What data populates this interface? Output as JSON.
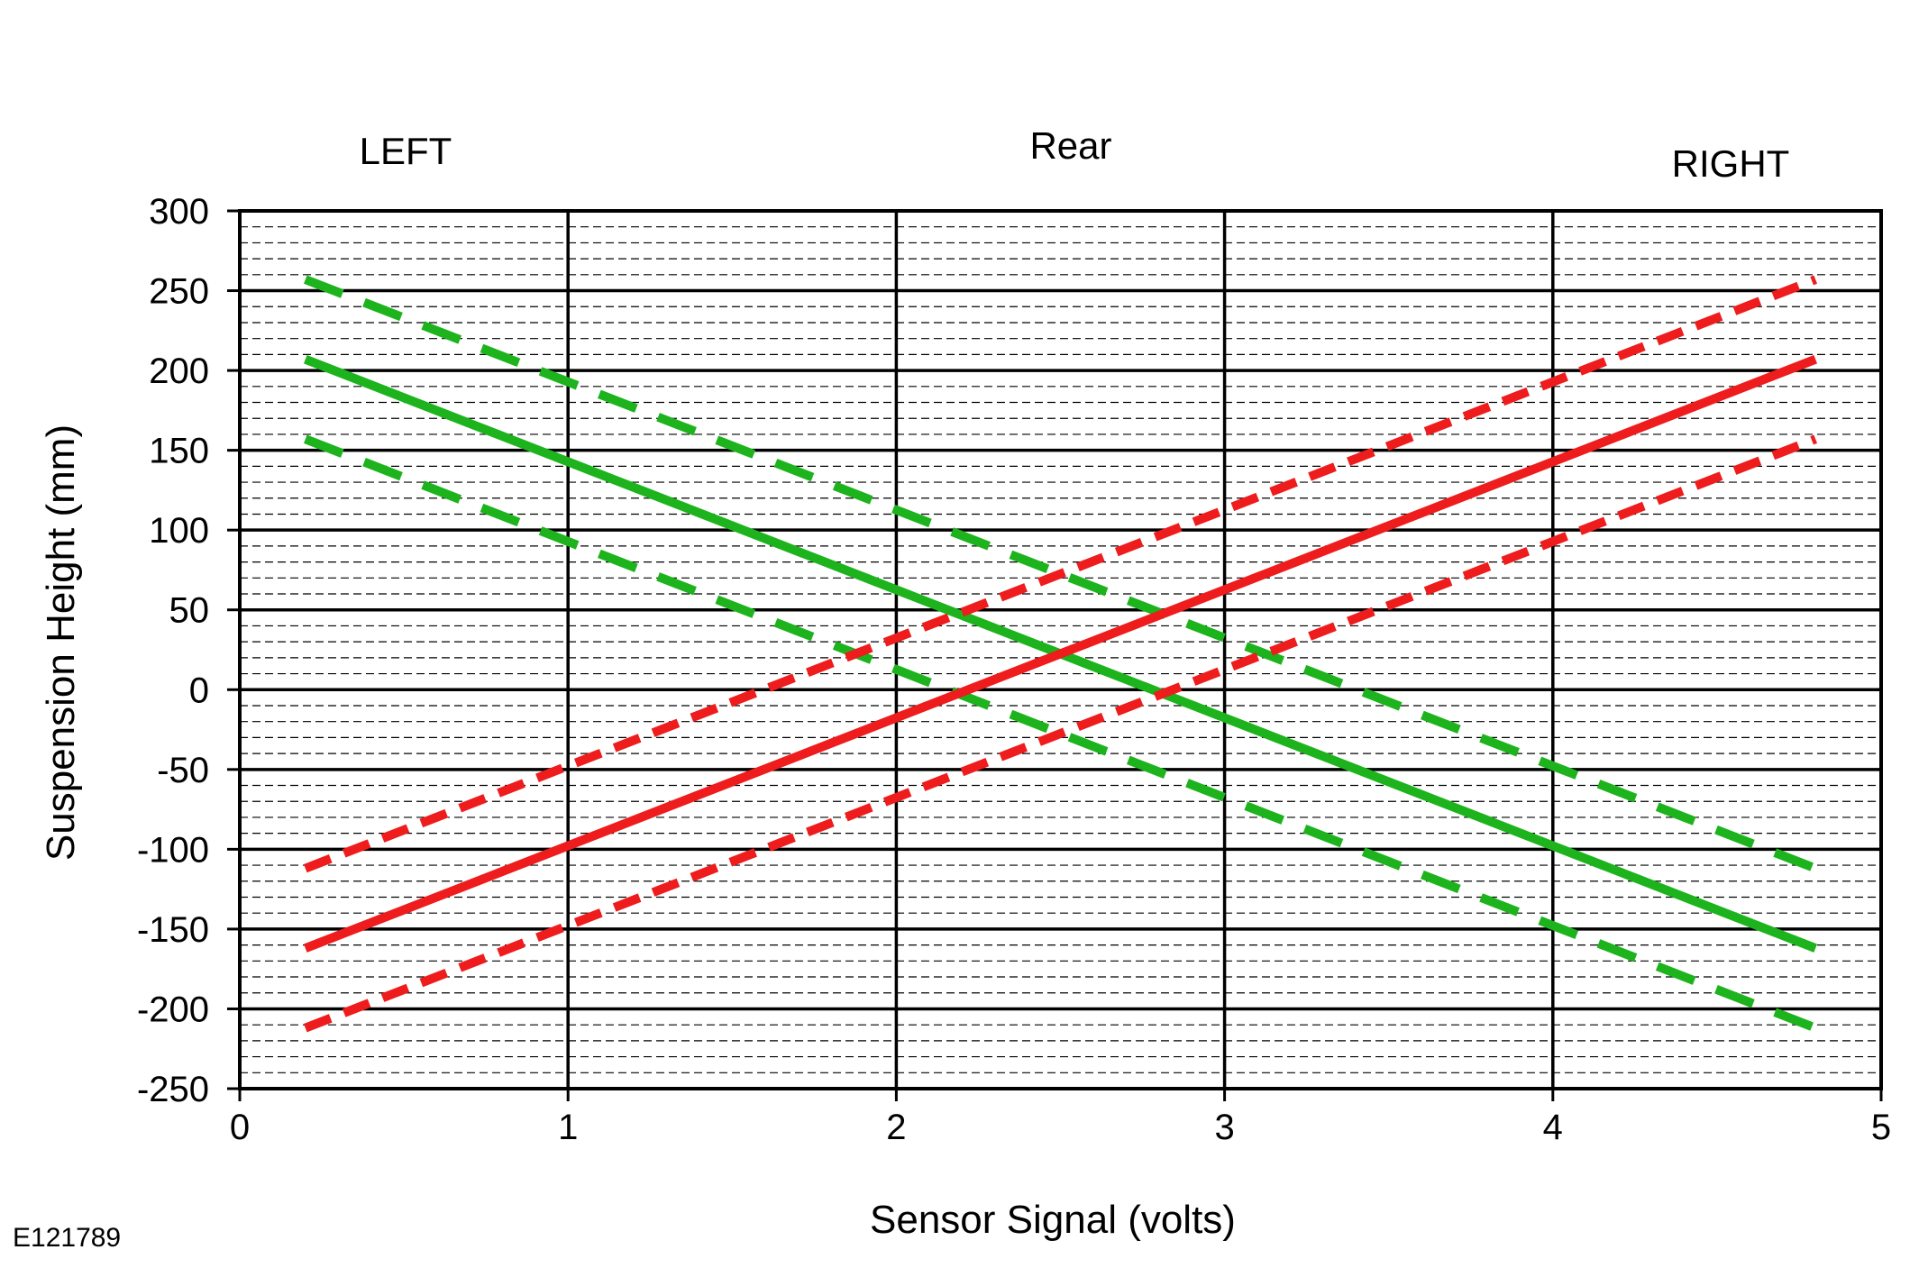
{
  "chart_data": {
    "type": "line",
    "header_labels": {
      "left": "LEFT",
      "center": "Rear",
      "right": "RIGHT"
    },
    "xlabel": "Sensor Signal (volts)",
    "ylabel": "Suspension Height (mm)",
    "figure_id": "E121789",
    "xlim": [
      0,
      5
    ],
    "ylim": [
      -250,
      300
    ],
    "x_ticks": [
      0,
      1,
      2,
      3,
      4,
      5
    ],
    "y_ticks": [
      -250,
      -200,
      -150,
      -100,
      -50,
      0,
      50,
      100,
      150,
      200,
      250,
      300
    ],
    "x_tick_labels": [
      "0",
      "1",
      "2",
      "3",
      "4",
      "5"
    ],
    "y_tick_labels": [
      "-250",
      "-200",
      "-150",
      "-100",
      "-50",
      "0",
      "50",
      "100",
      "150",
      "200",
      "250",
      "300"
    ],
    "grid": {
      "major": true,
      "minor_dashed_y_step": 10
    },
    "series": [
      {
        "color": "#1db31d",
        "style": "dashed",
        "x": [
          0.2,
          4.8
        ],
        "y": [
          257,
          -112
        ]
      },
      {
        "color": "#1db31d",
        "style": "solid",
        "x": [
          0.2,
          4.8
        ],
        "y": [
          207,
          -162
        ]
      },
      {
        "color": "#1db31d",
        "style": "dashed",
        "x": [
          0.2,
          4.8
        ],
        "y": [
          157,
          -212
        ]
      },
      {
        "color": "#ee1c1c",
        "style": "dashed",
        "x": [
          0.2,
          4.8
        ],
        "y": [
          -112,
          257
        ]
      },
      {
        "color": "#ee1c1c",
        "style": "solid",
        "x": [
          0.2,
          4.8
        ],
        "y": [
          -162,
          207
        ]
      },
      {
        "color": "#ee1c1c",
        "style": "dashed",
        "x": [
          0.2,
          4.8
        ],
        "y": [
          -212,
          157
        ]
      }
    ]
  }
}
